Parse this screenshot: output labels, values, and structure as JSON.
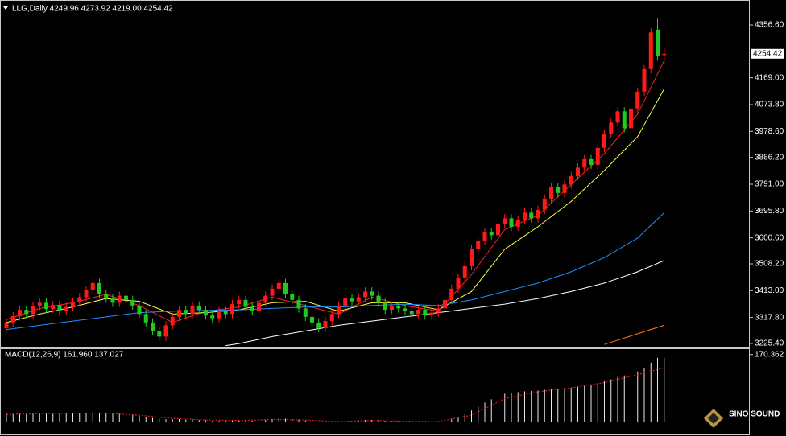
{
  "chart_data": [
    {
      "type": "candlestick",
      "title": "LLG,Daily 4249.96 4273.92 4219.00 4254.42",
      "up_color": "#ff1a1a",
      "down_color": "#22c922",
      "open": [
        3280,
        3300,
        3322,
        3345,
        3330,
        3358,
        3370,
        3348,
        3362,
        3340,
        3355,
        3372,
        3390,
        3415,
        3440,
        3400,
        3385,
        3370,
        3395,
        3380,
        3360,
        3330,
        3300,
        3270,
        3250,
        3290,
        3320,
        3345,
        3330,
        3360,
        3345,
        3325,
        3315,
        3340,
        3330,
        3365,
        3380,
        3355,
        3340,
        3370,
        3395,
        3420,
        3440,
        3400,
        3380,
        3350,
        3320,
        3300,
        3280,
        3305,
        3330,
        3360,
        3385,
        3375,
        3390,
        3410,
        3395,
        3370,
        3345,
        3360,
        3350,
        3340,
        3330,
        3345,
        3325,
        3335,
        3350,
        3380,
        3420,
        3460,
        3500,
        3560,
        3590,
        3620,
        3610,
        3650,
        3670,
        3640,
        3665,
        3690,
        3670,
        3700,
        3740,
        3780,
        3760,
        3790,
        3820,
        3850,
        3880,
        3860,
        3920,
        3970,
        4010,
        4050,
        3990,
        4060,
        4120,
        4200,
        4340,
        4249.96
      ],
      "high": [
        3315,
        3337,
        3360,
        3360,
        3373,
        3385,
        3385,
        3377,
        3377,
        3370,
        3387,
        3405,
        3430,
        3455,
        3455,
        3415,
        3400,
        3410,
        3410,
        3395,
        3375,
        3345,
        3315,
        3285,
        3305,
        3335,
        3360,
        3360,
        3375,
        3375,
        3360,
        3340,
        3355,
        3355,
        3380,
        3395,
        3395,
        3370,
        3385,
        3410,
        3435,
        3455,
        3455,
        3415,
        3395,
        3365,
        3335,
        3315,
        3320,
        3345,
        3375,
        3400,
        3400,
        3405,
        3425,
        3425,
        3410,
        3385,
        3375,
        3375,
        3365,
        3355,
        3360,
        3360,
        3350,
        3365,
        3395,
        3435,
        3475,
        3515,
        3575,
        3605,
        3635,
        3635,
        3665,
        3685,
        3685,
        3680,
        3705,
        3705,
        3715,
        3755,
        3795,
        3795,
        3805,
        3835,
        3865,
        3895,
        3895,
        3935,
        3985,
        4025,
        4065,
        4065,
        4075,
        4135,
        4215,
        4345,
        4382,
        4273.92
      ],
      "low": [
        3265,
        3285,
        3307,
        3315,
        3315,
        3343,
        3333,
        3333,
        3325,
        3325,
        3340,
        3357,
        3375,
        3400,
        3385,
        3370,
        3355,
        3355,
        3365,
        3345,
        3315,
        3285,
        3255,
        3235,
        3235,
        3275,
        3305,
        3315,
        3315,
        3330,
        3310,
        3300,
        3300,
        3315,
        3315,
        3350,
        3340,
        3325,
        3325,
        3355,
        3380,
        3405,
        3385,
        3365,
        3335,
        3305,
        3285,
        3265,
        3265,
        3290,
        3315,
        3345,
        3360,
        3360,
        3375,
        3380,
        3355,
        3330,
        3330,
        3335,
        3325,
        3315,
        3315,
        3310,
        3310,
        3320,
        3335,
        3365,
        3405,
        3445,
        3485,
        3545,
        3575,
        3595,
        3595,
        3635,
        3625,
        3625,
        3650,
        3655,
        3655,
        3685,
        3725,
        3745,
        3745,
        3775,
        3805,
        3835,
        3845,
        3845,
        3905,
        3955,
        3995,
        3975,
        3975,
        4045,
        4105,
        4185,
        4230,
        4219
      ],
      "close": [
        3300,
        3322,
        3345,
        3330,
        3358,
        3370,
        3348,
        3362,
        3340,
        3355,
        3372,
        3390,
        3415,
        3440,
        3400,
        3385,
        3370,
        3395,
        3380,
        3360,
        3330,
        3300,
        3270,
        3250,
        3290,
        3320,
        3345,
        3330,
        3360,
        3345,
        3325,
        3315,
        3340,
        3330,
        3365,
        3380,
        3355,
        3340,
        3370,
        3395,
        3420,
        3440,
        3400,
        3380,
        3350,
        3320,
        3300,
        3280,
        3305,
        3330,
        3360,
        3385,
        3375,
        3390,
        3410,
        3395,
        3370,
        3345,
        3360,
        3350,
        3340,
        3330,
        3345,
        3325,
        3335,
        3350,
        3380,
        3420,
        3460,
        3500,
        3560,
        3590,
        3620,
        3610,
        3650,
        3670,
        3640,
        3665,
        3690,
        3670,
        3700,
        3740,
        3780,
        3760,
        3790,
        3820,
        3850,
        3880,
        3860,
        3920,
        3970,
        4010,
        4050,
        3990,
        4060,
        4120,
        4200,
        4330,
        4245,
        4254.42
      ],
      "series": [
        {
          "color": "#ff2020",
          "x": [
            0,
            5,
            10,
            15,
            20,
            25,
            30,
            35,
            40,
            45,
            50,
            55,
            60,
            65,
            70,
            75,
            80,
            85,
            90,
            95,
            99
          ],
          "values": [
            3310,
            3350,
            3370,
            3400,
            3360,
            3300,
            3340,
            3355,
            3390,
            3360,
            3330,
            3390,
            3360,
            3340,
            3470,
            3630,
            3680,
            3790,
            3900,
            4040,
            4230
          ]
        },
        {
          "color": "#ffff40",
          "x": [
            0,
            5,
            10,
            15,
            20,
            25,
            30,
            35,
            40,
            45,
            50,
            55,
            60,
            65,
            70,
            75,
            80,
            85,
            90,
            95,
            99
          ],
          "values": [
            3300,
            3330,
            3355,
            3385,
            3375,
            3330,
            3335,
            3345,
            3370,
            3375,
            3340,
            3370,
            3370,
            3345,
            3410,
            3560,
            3640,
            3730,
            3840,
            3960,
            4130
          ]
        },
        {
          "color": "#1e90ff",
          "x": [
            0,
            5,
            10,
            15,
            20,
            25,
            30,
            35,
            40,
            45,
            50,
            55,
            60,
            65,
            70,
            75,
            80,
            85,
            90,
            95,
            99
          ],
          "values": [
            3275,
            3290,
            3305,
            3320,
            3335,
            3340,
            3343,
            3345,
            3350,
            3355,
            3355,
            3360,
            3365,
            3360,
            3380,
            3410,
            3440,
            3480,
            3530,
            3600,
            3690
          ]
        },
        {
          "color": "#ffffff",
          "x": [
            33,
            35,
            40,
            45,
            50,
            55,
            60,
            65,
            70,
            75,
            80,
            85,
            90,
            95,
            99
          ],
          "values": [
            3218,
            3225,
            3250,
            3270,
            3290,
            3305,
            3320,
            3335,
            3350,
            3365,
            3385,
            3410,
            3440,
            3480,
            3520
          ]
        },
        {
          "color": "#ff7a1a",
          "x": [
            90,
            95,
            99
          ],
          "values": [
            3222,
            3260,
            3290
          ]
        }
      ],
      "ylim": [
        3216.8,
        4445.2
      ],
      "yticks": [
        {
          "value": 4356.6,
          "label": "4356.60"
        },
        {
          "value": 4169,
          "label": "4169.00"
        },
        {
          "value": 4073.8,
          "label": "4073.80"
        },
        {
          "value": 3978.6,
          "label": "3978.60"
        },
        {
          "value": 3886.2,
          "label": "3886.20"
        },
        {
          "value": 3791,
          "label": "3791.00"
        },
        {
          "value": 3695.8,
          "label": "3695.80"
        },
        {
          "value": 3600.6,
          "label": "3600.60"
        },
        {
          "value": 3508.2,
          "label": "3508.20"
        },
        {
          "value": 3413,
          "label": "3413.00"
        },
        {
          "value": 3317.8,
          "label": "3317.80"
        },
        {
          "value": 3225.4,
          "label": "3225.40"
        }
      ],
      "last_price": {
        "value": 4254.42,
        "label": "4254.42"
      },
      "watermark": "SINO SOUND"
    },
    {
      "type": "macd",
      "title": "MACD(12,26,9) 161.960 137.027",
      "bar_color": "#e8e8e8",
      "values": [
        22,
        22,
        22,
        22,
        23,
        23,
        23,
        23,
        22,
        22,
        23,
        24,
        24,
        25,
        24,
        23,
        22,
        22,
        21,
        20,
        17,
        14,
        11,
        9,
        8,
        8,
        8,
        7,
        7,
        6,
        5,
        4,
        4,
        4,
        5,
        5,
        5,
        4,
        5,
        6,
        8,
        9,
        9,
        8,
        7,
        5,
        3,
        2,
        1,
        1,
        2,
        3,
        4,
        5,
        6,
        6,
        5,
        4,
        3,
        3,
        2,
        1,
        1,
        1,
        1,
        2,
        4,
        8,
        14,
        20,
        30,
        40,
        50,
        58,
        66,
        72,
        74,
        76,
        78,
        79,
        80,
        82,
        84,
        85,
        86,
        88,
        90,
        93,
        95,
        98,
        103,
        108,
        114,
        118,
        122,
        128,
        136,
        150,
        162,
        161.96
      ],
      "signal": {
        "color": "#ff2020",
        "x": [
          0,
          5,
          10,
          15,
          20,
          25,
          30,
          35,
          40,
          45,
          50,
          55,
          60,
          65,
          70,
          75,
          80,
          85,
          90,
          95,
          99
        ],
        "values": [
          20,
          22,
          23,
          23,
          18,
          10,
          6,
          5,
          7,
          6,
          2,
          5,
          3,
          2,
          18,
          60,
          77,
          87,
          100,
          120,
          137.027
        ]
      },
      "ylim": [
        -10,
        184
      ],
      "yticks": [
        {
          "value": 170.362,
          "label": "170.362"
        }
      ]
    }
  ]
}
